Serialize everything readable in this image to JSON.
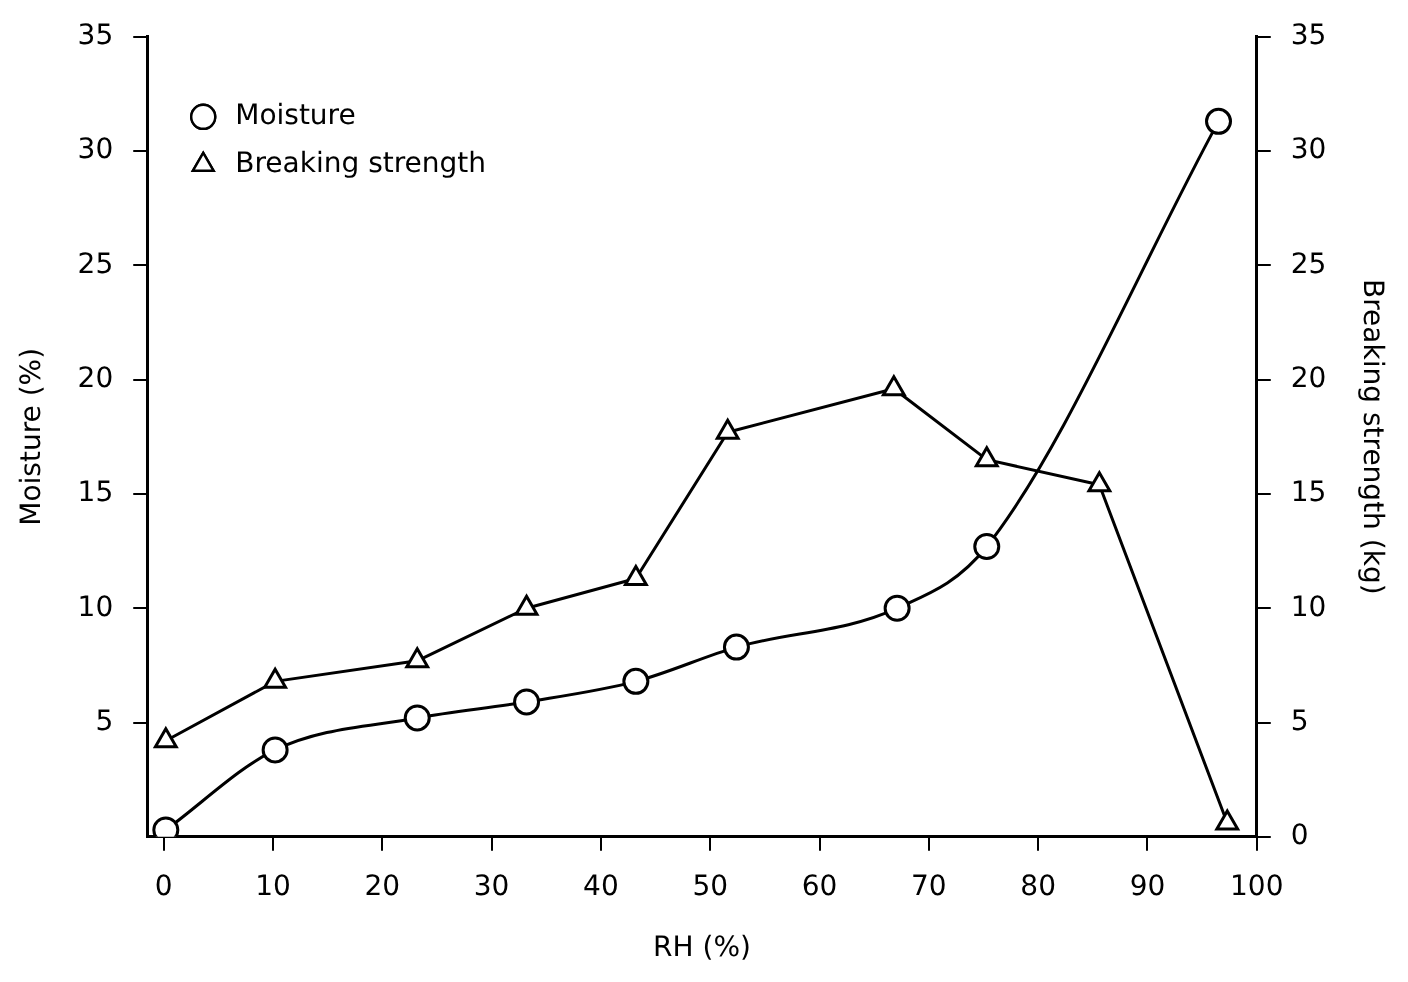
{
  "chart_data": {
    "type": "line",
    "xlabel": "RH (%)",
    "ylabel": "Moisture (%)",
    "y2label": "Breaking strength (kg)",
    "xlim": [
      -1.5,
      100
    ],
    "xticks": [
      0,
      10,
      20,
      30,
      40,
      50,
      60,
      70,
      80,
      90,
      100
    ],
    "ylim": [
      0,
      35
    ],
    "yticks": [
      5,
      10,
      15,
      20,
      25,
      30,
      35
    ],
    "y2lim": [
      0,
      35
    ],
    "y2ticks": [
      0,
      5,
      10,
      15,
      20,
      25,
      30,
      35
    ],
    "grid": false,
    "legend": "top left",
    "series": [
      {
        "name": "Moisture",
        "color": "#000000",
        "marker": "circle",
        "x": [
          0.2,
          10.2,
          23.2,
          33.2,
          43.2,
          52.4,
          67.1,
          75.3,
          96.5
        ],
        "values": [
          0.3,
          3.8,
          5.2,
          5.9,
          6.8,
          8.3,
          10,
          12.7,
          31.3
        ]
      },
      {
        "name": "Breaking strength",
        "color": "#000000",
        "marker": "triangle",
        "axis": "y2",
        "x": [
          0.2,
          10.2,
          23.2,
          33.2,
          43.2,
          51.6,
          66.8,
          75.3,
          85.6,
          97.3
        ],
        "values": [
          4.2,
          6.8,
          7.7,
          10,
          11.3,
          17.7,
          19.6,
          16.5,
          15.4,
          0.6
        ]
      }
    ]
  }
}
